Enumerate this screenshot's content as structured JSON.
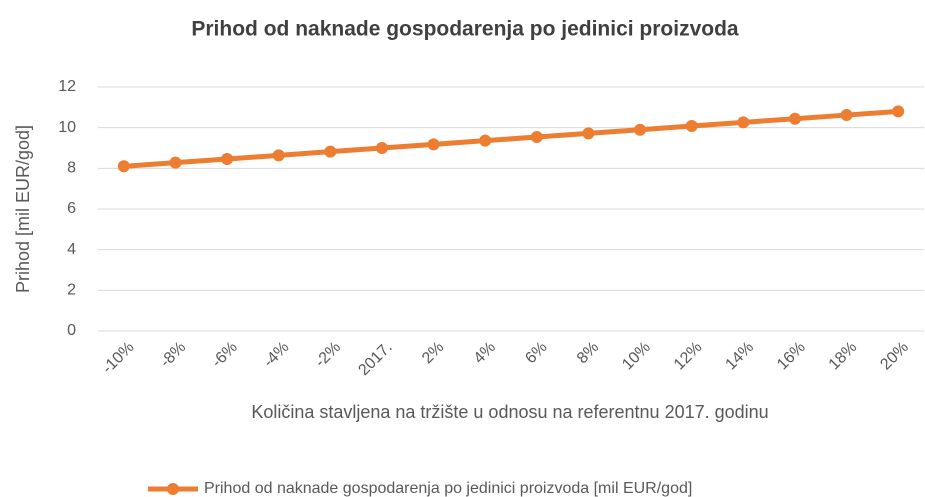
{
  "chart_data": {
    "type": "line",
    "title": "Prihod od naknade gospodarenja po jedinici proizvoda",
    "x_label": "Količina stavljena na tržište u odnosu na referentnu 2017. godinu",
    "y_label": "Prihod [mil EUR/god]",
    "categories": [
      "-10%",
      "-8%",
      "-6%",
      "-4%",
      "-2%",
      "2017.",
      "2%",
      "4%",
      "6%",
      "8%",
      "10%",
      "12%",
      "14%",
      "16%",
      "18%",
      "20%"
    ],
    "series": [
      {
        "name": "Prihod od naknade gospodarenja po jedinici proizvoda [mil EUR/god]",
        "color": "#ED7D31",
        "values": [
          8.1,
          8.28,
          8.46,
          8.64,
          8.82,
          9.0,
          9.18,
          9.36,
          9.54,
          9.72,
          9.9,
          10.08,
          10.26,
          10.44,
          10.62,
          10.8
        ]
      }
    ],
    "ylim": [
      0,
      12
    ],
    "yticks": [
      0,
      2,
      4,
      6,
      8,
      10,
      12
    ],
    "grid": true,
    "legend": "bottom"
  }
}
